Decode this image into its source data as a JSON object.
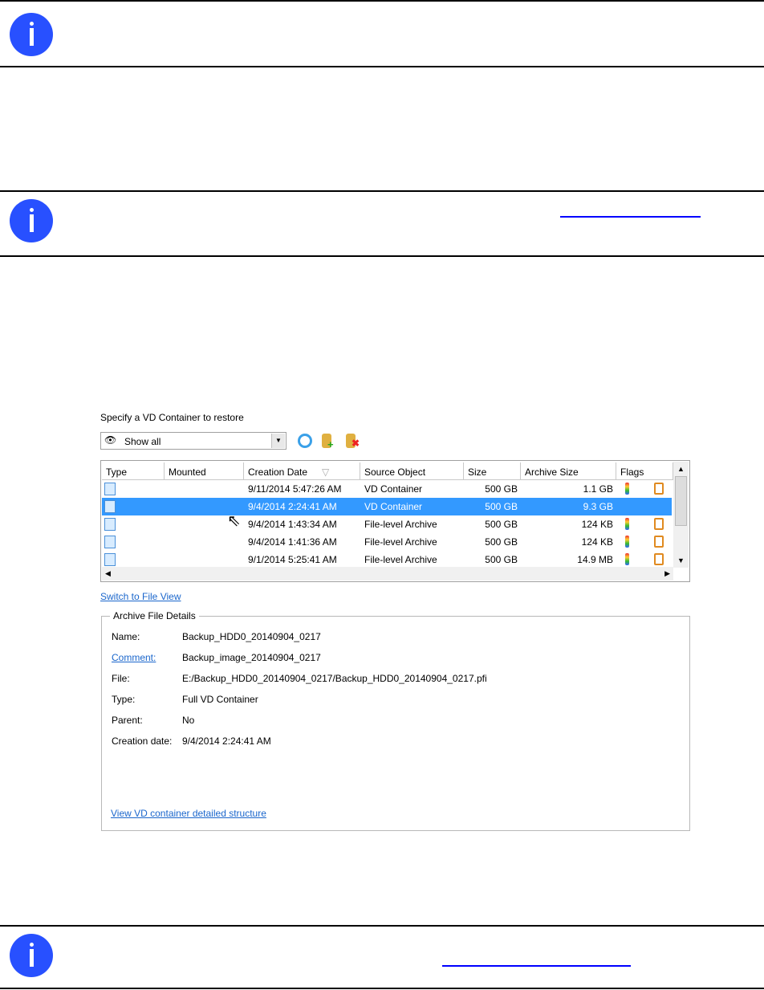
{
  "colors": {
    "info_icon": "#2850ff",
    "link": "#0000ff",
    "selection": "#3399ff"
  },
  "info_boxes": [
    {
      "icon": "info-icon"
    },
    {
      "icon": "info-icon",
      "has_link": true
    },
    {
      "icon": "info-icon",
      "has_link": true
    }
  ],
  "dialog": {
    "prompt": "Specify a VD Container to restore",
    "filter": {
      "value": "Show all",
      "icon": "eye-icon"
    },
    "toolbar": [
      {
        "icon": "refresh-icon"
      },
      {
        "icon": "add-database-icon"
      },
      {
        "icon": "remove-database-icon"
      }
    ],
    "columns": [
      "Type",
      "Mounted",
      "Creation Date",
      "Source Object",
      "Size",
      "Archive Size",
      "Flags"
    ],
    "sort_indicator": "▽",
    "rows": [
      {
        "type": "vd-container-icon",
        "mounted": "",
        "date": "9/11/2014 5:47:26 AM",
        "source": "VD Container",
        "size": "500 GB",
        "archive_size": "1.1 GB",
        "selected": false,
        "flags": [
          "thermometer-icon",
          "tree-icon"
        ]
      },
      {
        "type": "vd-container-icon",
        "mounted": "",
        "date": "9/4/2014 2:24:41 AM",
        "source": "VD Container",
        "size": "500 GB",
        "archive_size": "9.3 GB",
        "selected": true,
        "flags": []
      },
      {
        "type": "file-icon",
        "mounted": "",
        "date": "9/4/2014 1:43:34 AM",
        "source": "File-level Archive",
        "size": "500 GB",
        "archive_size": "124 KB",
        "selected": false,
        "flags": [
          "thermometer-icon",
          "tree-icon"
        ]
      },
      {
        "type": "file-icon",
        "mounted": "",
        "date": "9/4/2014 1:41:36 AM",
        "source": "File-level Archive",
        "size": "500 GB",
        "archive_size": "124 KB",
        "selected": false,
        "flags": [
          "thermometer-icon",
          "tree-icon"
        ]
      },
      {
        "type": "file-icon",
        "mounted": "",
        "date": "9/1/2014 5:25:41 AM",
        "source": "File-level Archive",
        "size": "500 GB",
        "archive_size": "14.9 MB",
        "selected": false,
        "flags": [
          "key-icon",
          "tree-icon"
        ]
      }
    ],
    "switch_view_link": "Switch to File View",
    "details": {
      "title": "Archive File Details",
      "fields": [
        {
          "label": "Name:",
          "value": "Backup_HDD0_20140904_0217"
        },
        {
          "label": "Comment:",
          "value": "Backup_image_20140904_0217",
          "link": true
        },
        {
          "label": "File:",
          "value": "E:/Backup_HDD0_20140904_0217/Backup_HDD0_20140904_0217.pfi"
        },
        {
          "label": "Type:",
          "value": "Full VD Container"
        },
        {
          "label": "Parent:",
          "value": "No"
        },
        {
          "label": "Creation date:",
          "value": "9/4/2014 2:24:41 AM"
        }
      ],
      "structure_link": "View VD container detailed structure"
    }
  }
}
